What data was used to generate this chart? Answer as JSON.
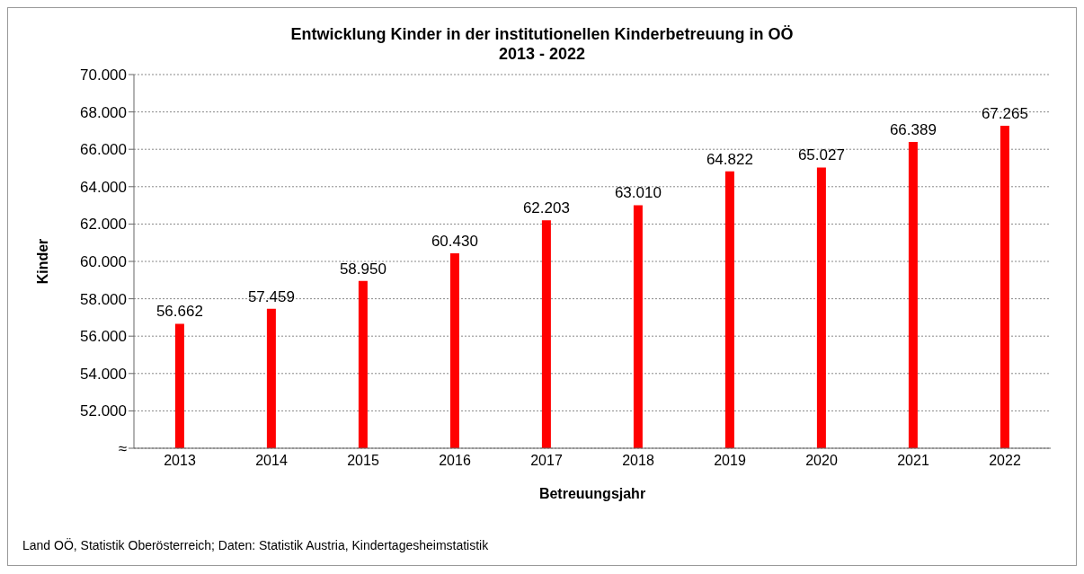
{
  "chart_data": {
    "type": "bar",
    "title": "Entwicklung Kinder in der institutionellen Kinderbetreuung in OÖ",
    "subtitle": "2013 - 2022",
    "xlabel": "Betreuungsjahr",
    "ylabel": "Kinder",
    "categories": [
      "2013",
      "2014",
      "2015",
      "2016",
      "2017",
      "2018",
      "2019",
      "2020",
      "2021",
      "2022"
    ],
    "values": [
      56662,
      57459,
      58950,
      60430,
      62203,
      63010,
      64822,
      65027,
      66389,
      67265
    ],
    "value_labels": [
      "56.662",
      "57.459",
      "58.950",
      "60.430",
      "62.203",
      "63.010",
      "64.822",
      "65.027",
      "66.389",
      "67.265"
    ],
    "color": "#ff0000",
    "ylim": [
      50000,
      70000
    ],
    "yticks": [
      {
        "value": 50000,
        "label": "≈"
      },
      {
        "value": 52000,
        "label": "52.000"
      },
      {
        "value": 54000,
        "label": "54.000"
      },
      {
        "value": 56000,
        "label": "56.000"
      },
      {
        "value": 58000,
        "label": "58.000"
      },
      {
        "value": 60000,
        "label": "60.000"
      },
      {
        "value": 62000,
        "label": "62.000"
      },
      {
        "value": 64000,
        "label": "64.000"
      },
      {
        "value": 66000,
        "label": "66.000"
      },
      {
        "value": 68000,
        "label": "68.000"
      },
      {
        "value": 70000,
        "label": "70.000"
      }
    ],
    "grid": "y",
    "annotations": [
      "Land OÖ, Statistik Oberösterreich; Daten: Statistik Austria, Kindertagesheimstatistik"
    ]
  }
}
